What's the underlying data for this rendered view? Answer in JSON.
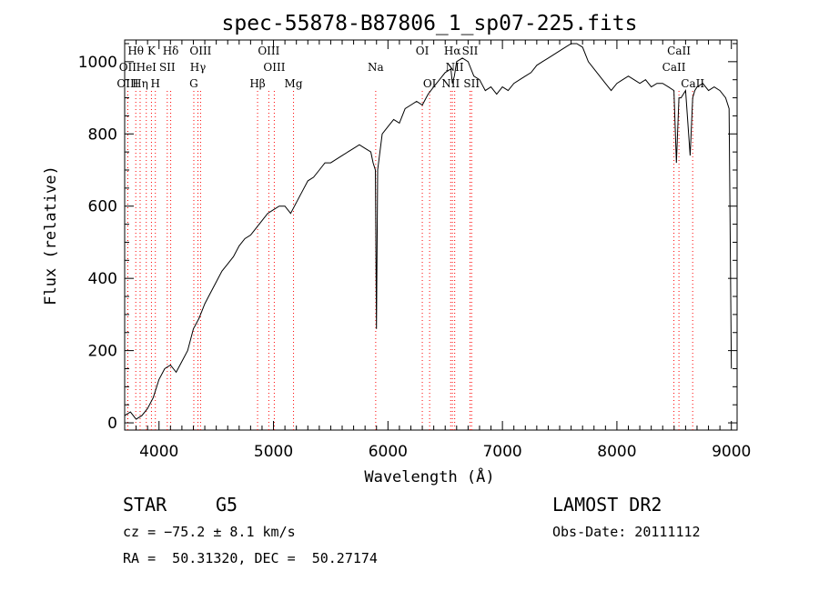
{
  "title": "spec-55878-B87806_1_sp07-225.fits",
  "info": {
    "class": "STAR",
    "subclass": "G5",
    "survey": "LAMOST DR2",
    "cz": "cz = −75.2 ± 8.1 km/s",
    "obs_date": "Obs-Date: 20111112",
    "radec": "RA =  50.31320, DEC =  50.27174"
  },
  "chart_data": {
    "type": "line",
    "title": "spec-55878-B87806_1_sp07-225.fits",
    "xlabel": "Wavelength (Å)",
    "ylabel": "Flux (relative)",
    "xlim": [
      3700,
      9050
    ],
    "ylim": [
      -20,
      1060
    ],
    "xticks": [
      4000,
      5000,
      6000,
      7000,
      8000,
      9000
    ],
    "yticks": [
      0,
      200,
      400,
      600,
      800,
      1000
    ],
    "grid": false,
    "line_color": "#000000",
    "line_marker_color": "#ff0000",
    "series": [
      {
        "x": [
          3700,
          3750,
          3800,
          3850,
          3900,
          3950,
          4000,
          4050,
          4100,
          4150,
          4200,
          4250,
          4300,
          4350,
          4400,
          4450,
          4500,
          4550,
          4600,
          4650,
          4700,
          4750,
          4800,
          4850,
          4900,
          4950,
          5000,
          5050,
          5100,
          5150,
          5200,
          5250,
          5300,
          5350,
          5400,
          5450,
          5500,
          5550,
          5600,
          5650,
          5700,
          5750,
          5800,
          5850,
          5870,
          5890,
          5900,
          5910,
          5950,
          6000,
          6050,
          6100,
          6150,
          6200,
          6250,
          6300,
          6350,
          6400,
          6450,
          6500,
          6550,
          6563,
          6580,
          6600,
          6650,
          6700,
          6750,
          6800,
          6850,
          6900,
          6950,
          7000,
          7050,
          7100,
          7150,
          7200,
          7250,
          7300,
          7350,
          7400,
          7450,
          7500,
          7550,
          7600,
          7650,
          7700,
          7750,
          7800,
          7850,
          7900,
          7950,
          8000,
          8050,
          8100,
          8150,
          8200,
          8250,
          8300,
          8350,
          8400,
          8450,
          8498,
          8520,
          8542,
          8560,
          8600,
          8640,
          8662,
          8680,
          8700,
          8750,
          8800,
          8850,
          8900,
          8950,
          8980,
          9000
        ],
        "y": [
          20,
          30,
          10,
          20,
          40,
          70,
          120,
          150,
          160,
          140,
          170,
          200,
          260,
          290,
          330,
          360,
          390,
          420,
          440,
          460,
          490,
          510,
          520,
          540,
          560,
          580,
          590,
          600,
          600,
          580,
          610,
          640,
          670,
          680,
          700,
          720,
          720,
          730,
          740,
          750,
          760,
          770,
          760,
          750,
          720,
          700,
          260,
          700,
          800,
          820,
          840,
          830,
          870,
          880,
          890,
          880,
          910,
          930,
          950,
          970,
          980,
          940,
          960,
          1000,
          1010,
          1000,
          960,
          950,
          920,
          930,
          910,
          930,
          920,
          940,
          950,
          960,
          970,
          990,
          1000,
          1010,
          1020,
          1030,
          1040,
          1050,
          1050,
          1040,
          1000,
          980,
          960,
          940,
          920,
          940,
          950,
          960,
          950,
          940,
          950,
          930,
          940,
          940,
          930,
          920,
          720,
          900,
          900,
          920,
          740,
          900,
          920,
          930,
          940,
          920,
          930,
          920,
          900,
          870,
          150
        ]
      }
    ],
    "spectral_lines": [
      {
        "label": "Hθ",
        "x": 3797,
        "row": 0
      },
      {
        "label": "K",
        "x": 3934,
        "row": 0
      },
      {
        "label": "Hδ",
        "x": 4102,
        "row": 0
      },
      {
        "label": "OIII",
        "x": 4363,
        "row": 0
      },
      {
        "label": "OIII",
        "x": 4959,
        "row": 0
      },
      {
        "label": "OI",
        "x": 6300,
        "row": 0
      },
      {
        "label": "Hα",
        "x": 6563,
        "row": 0
      },
      {
        "label": "SII",
        "x": 6717,
        "row": 0
      },
      {
        "label": "CaII",
        "x": 8542,
        "row": 0
      },
      {
        "label": "OII",
        "x": 3727,
        "row": 1
      },
      {
        "label": "HeI",
        "x": 3889,
        "row": 1
      },
      {
        "label": "SII",
        "x": 4072,
        "row": 1
      },
      {
        "label": "Hγ",
        "x": 4340,
        "row": 1
      },
      {
        "label": "OIII",
        "x": 5007,
        "row": 1
      },
      {
        "label": "Na",
        "x": 5893,
        "row": 1
      },
      {
        "label": "NII",
        "x": 6583,
        "row": 1
      },
      {
        "label": "CaII",
        "x": 8498,
        "row": 1
      },
      {
        "label": "OIII",
        "x": 3727,
        "row": 2
      },
      {
        "label": "Hη",
        "x": 3835,
        "row": 2
      },
      {
        "label": "H",
        "x": 3968,
        "row": 2
      },
      {
        "label": "G",
        "x": 4304,
        "row": 2
      },
      {
        "label": "Hβ",
        "x": 4861,
        "row": 2
      },
      {
        "label": "Mg",
        "x": 5175,
        "row": 2
      },
      {
        "label": "OI",
        "x": 6364,
        "row": 2
      },
      {
        "label": "NII",
        "x": 6548,
        "row": 2
      },
      {
        "label": "SII",
        "x": 6731,
        "row": 2
      },
      {
        "label": "CaII",
        "x": 8662,
        "row": 2
      }
    ]
  }
}
